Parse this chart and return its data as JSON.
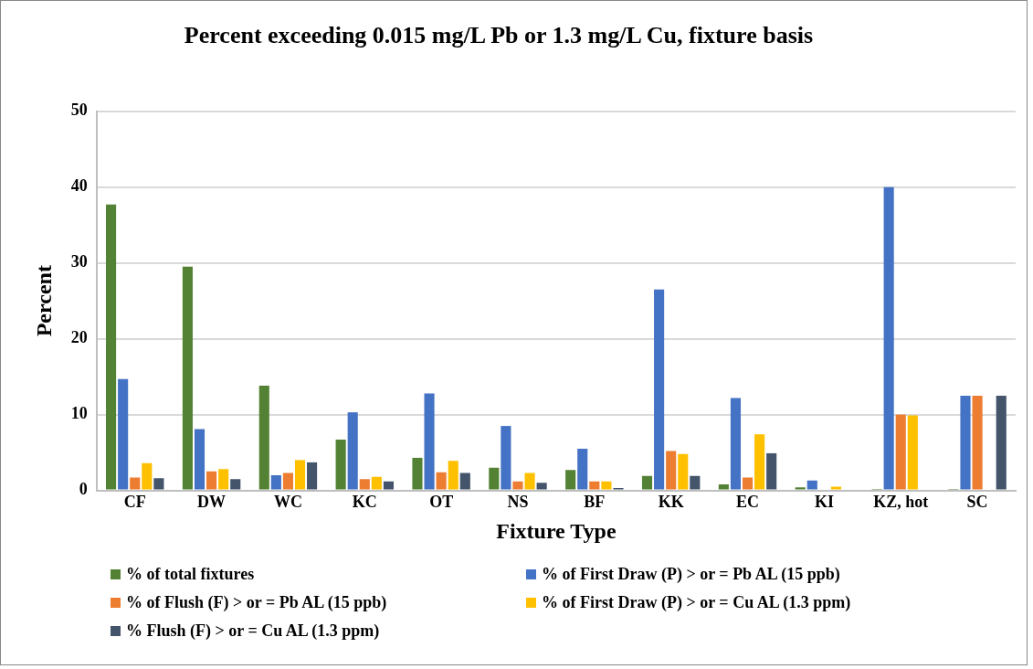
{
  "chart_data": {
    "type": "bar",
    "title": "Percent exceeding 0.015 mg/L Pb or 1.3 mg/L Cu, fixture basis",
    "xlabel": "Fixture Type",
    "ylabel": "Percent",
    "categories": [
      "CF",
      "DW",
      "WC",
      "KC",
      "OT",
      "NS",
      "BF",
      "KK",
      "EC",
      "KI",
      "KZ, hot",
      "SC"
    ],
    "series": [
      {
        "name": "% of total fixtures",
        "color": "#548235",
        "values": [
          37.7,
          29.5,
          13.8,
          6.7,
          4.3,
          3.0,
          2.7,
          1.9,
          0.8,
          0.4,
          0.2,
          0.2
        ]
      },
      {
        "name": "% of First Draw (P) > or = Pb AL (15 ppb)",
        "color": "#4472c4",
        "values": [
          14.7,
          8.1,
          2.0,
          10.3,
          12.8,
          8.5,
          5.5,
          26.5,
          12.2,
          1.3,
          40.0,
          12.5
        ]
      },
      {
        "name": "% of Flush (F) > or = Pb AL (15 ppb)",
        "color": "#ed7d31",
        "values": [
          1.7,
          2.5,
          2.3,
          1.5,
          2.4,
          1.2,
          1.2,
          5.2,
          1.7,
          0,
          10.0,
          12.5
        ]
      },
      {
        "name": "% of First Draw (P) > or = Cu AL (1.3 ppm)",
        "color": "#ffc000",
        "values": [
          3.6,
          2.8,
          4.0,
          1.8,
          3.9,
          2.3,
          1.2,
          4.8,
          7.4,
          0.5,
          9.9,
          0
        ]
      },
      {
        "name": "% Flush (F) > or = Cu AL (1.3 ppm)",
        "color": "#44546a",
        "values": [
          1.6,
          1.5,
          3.7,
          1.2,
          2.3,
          1.0,
          0.3,
          1.9,
          4.9,
          0,
          0,
          12.5
        ]
      }
    ],
    "ylim": [
      0,
      50
    ],
    "yticks": [
      0,
      10,
      20,
      30,
      40,
      50
    ],
    "grid": "y",
    "legend": "bottom"
  }
}
